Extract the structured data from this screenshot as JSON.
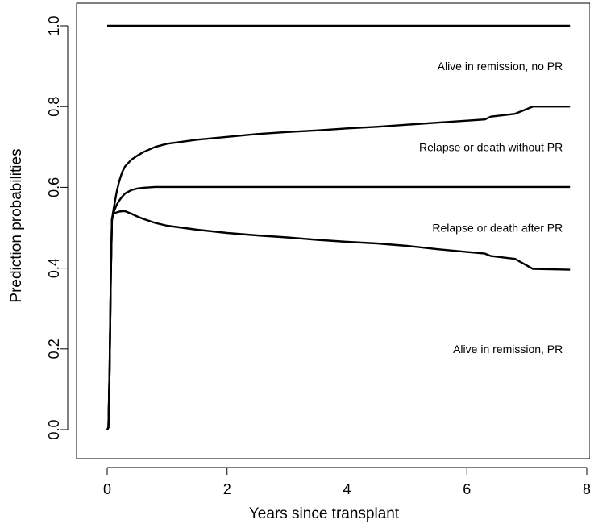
{
  "chart_data": {
    "type": "line",
    "title": "",
    "xlabel": "Years since transplant",
    "ylabel": "Prediction probabilities",
    "xlim": [
      0,
      8
    ],
    "ylim": [
      0,
      1
    ],
    "x_ticks": [
      0,
      2,
      4,
      6,
      8
    ],
    "x_tick_labels": [
      "0",
      "2",
      "4",
      "6",
      "8"
    ],
    "y_ticks": [
      0.0,
      0.2,
      0.4,
      0.6,
      0.8,
      1.0
    ],
    "y_tick_labels": [
      "0.0",
      "0.2",
      "0.4",
      "0.6",
      "0.8",
      "1.0"
    ],
    "grid": false,
    "legend": "none",
    "series": [
      {
        "x": [
          0,
          0.02,
          0.04,
          0.06,
          0.08,
          0.1,
          0.13,
          0.16,
          0.2,
          0.25,
          0.3,
          0.35,
          0.4,
          0.5,
          0.6,
          0.8,
          1.0,
          1.5,
          2.0,
          2.5,
          3.0,
          3.5,
          4.0,
          4.5,
          5.0,
          5.5,
          6.0,
          6.3,
          6.4,
          6.8,
          7.1,
          7.72
        ],
        "y": [
          0,
          0.005,
          0.15,
          0.38,
          0.52,
          0.535,
          0.537,
          0.538,
          0.54,
          0.541,
          0.541,
          0.538,
          0.535,
          0.528,
          0.522,
          0.512,
          0.505,
          0.495,
          0.487,
          0.481,
          0.476,
          0.47,
          0.465,
          0.461,
          0.455,
          0.447,
          0.44,
          0.436,
          0.43,
          0.423,
          0.398,
          0.396
        ]
      },
      {
        "x": [
          0,
          0.02,
          0.04,
          0.06,
          0.08,
          0.1,
          0.13,
          0.16,
          0.2,
          0.25,
          0.3,
          0.4,
          0.5,
          0.6,
          0.7,
          0.8,
          1.0,
          2.0,
          4.0,
          6.0,
          7.72
        ],
        "y": [
          0,
          0.005,
          0.15,
          0.38,
          0.52,
          0.535,
          0.547,
          0.557,
          0.567,
          0.577,
          0.585,
          0.593,
          0.597,
          0.599,
          0.6,
          0.601,
          0.601,
          0.601,
          0.601,
          0.601,
          0.601
        ]
      },
      {
        "x": [
          0,
          0.02,
          0.04,
          0.06,
          0.08,
          0.1,
          0.13,
          0.16,
          0.2,
          0.25,
          0.3,
          0.4,
          0.5,
          0.6,
          0.8,
          1.0,
          1.5,
          2.0,
          2.5,
          3.0,
          3.5,
          4.0,
          4.5,
          5.0,
          5.5,
          6.0,
          6.3,
          6.4,
          6.8,
          7.1,
          7.72
        ],
        "y": [
          0,
          0.005,
          0.15,
          0.38,
          0.52,
          0.54,
          0.566,
          0.59,
          0.615,
          0.638,
          0.652,
          0.668,
          0.678,
          0.687,
          0.7,
          0.708,
          0.718,
          0.725,
          0.732,
          0.737,
          0.741,
          0.746,
          0.75,
          0.755,
          0.76,
          0.765,
          0.768,
          0.775,
          0.782,
          0.8,
          0.8
        ]
      },
      {
        "x": [
          0,
          7.72
        ],
        "y": [
          1.0,
          1.0
        ]
      }
    ],
    "annotations": [
      {
        "text": "Alive in remission, no PR",
        "x": 7.6,
        "y": 0.9
      },
      {
        "text": "Relapse or death without PR",
        "x": 7.6,
        "y": 0.7
      },
      {
        "text": "Relapse or death after PR",
        "x": 7.6,
        "y": 0.5
      },
      {
        "text": "Alive in remission, PR",
        "x": 7.6,
        "y": 0.2
      }
    ]
  }
}
